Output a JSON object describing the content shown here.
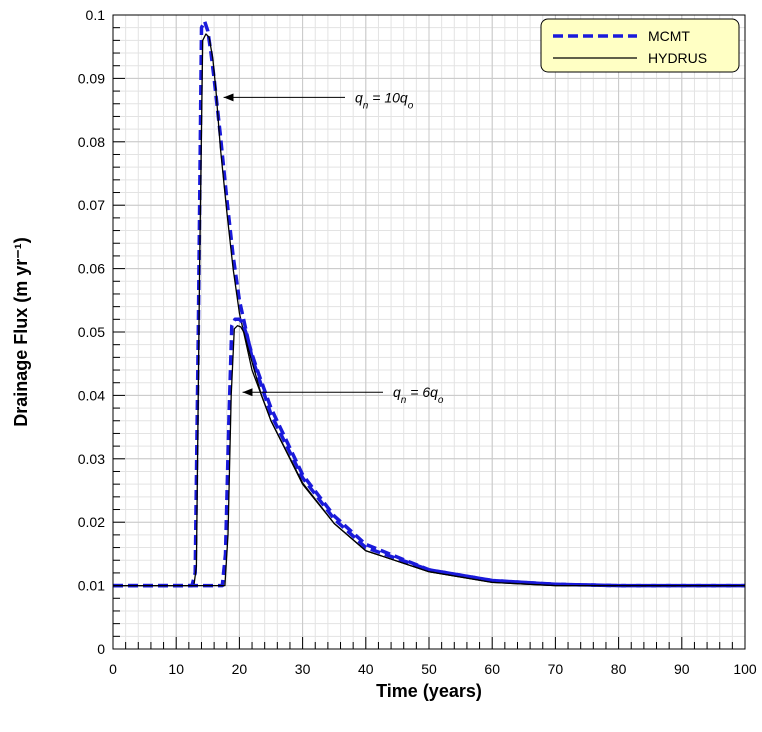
{
  "chart_data": {
    "type": "line",
    "title": "",
    "xlabel": "Time (years)",
    "ylabel": "Drainage Flux (m yr⁻¹)",
    "xlim": [
      0,
      100
    ],
    "ylim": [
      0,
      0.1
    ],
    "x_ticks": [
      "0",
      "10",
      "20",
      "30",
      "40",
      "50",
      "60",
      "70",
      "80",
      "90",
      "100"
    ],
    "y_ticks": [
      "0",
      "0.01",
      "0.02",
      "0.03",
      "0.04",
      "0.05",
      "0.06",
      "0.07",
      "0.08",
      "0.09",
      "0.1"
    ],
    "grid": true,
    "legend_position": "top-right",
    "legend": [
      {
        "label": "MCMT",
        "style": "dashed",
        "color": "#1a1adb"
      },
      {
        "label": "HYDRUS",
        "style": "solid",
        "color": "#000000"
      }
    ],
    "legend_fill": "#ffffc4",
    "annotations": [
      {
        "var": "q",
        "sub": "n",
        "rhs": " = 10q",
        "rhs_sub": "o",
        "target": [
          17.5,
          0.087
        ]
      },
      {
        "var": "q",
        "sub": "n",
        "rhs": " = 6q",
        "rhs_sub": "o",
        "target": [
          20.5,
          0.0405
        ]
      }
    ],
    "series": [
      {
        "name": "MCMT",
        "case": "qn = 10qo",
        "color": "#1a1adb",
        "x": [
          0,
          12.5,
          13,
          13.5,
          14,
          14.5,
          15,
          15.5,
          16,
          17,
          18,
          19,
          20,
          22,
          25,
          30,
          35,
          40,
          50,
          60,
          70,
          80,
          100
        ],
        "y": [
          0.01,
          0.01,
          0.012,
          0.05,
          0.098,
          0.099,
          0.0975,
          0.094,
          0.09,
          0.081,
          0.071,
          0.062,
          0.055,
          0.046,
          0.037,
          0.027,
          0.0205,
          0.016,
          0.0125,
          0.0108,
          0.0102,
          0.01,
          0.01
        ]
      },
      {
        "name": "HYDRUS",
        "case": "qn = 10qo",
        "color": "#000000",
        "x": [
          0,
          12.8,
          13.2,
          13.7,
          14.2,
          14.7,
          15.2,
          15.8,
          16.3,
          17,
          18,
          19,
          20,
          22,
          25,
          30,
          35,
          40,
          50,
          60,
          70,
          80,
          100
        ],
        "y": [
          0.01,
          0.01,
          0.013,
          0.06,
          0.096,
          0.097,
          0.0965,
          0.093,
          0.088,
          0.079,
          0.069,
          0.06,
          0.053,
          0.044,
          0.036,
          0.0262,
          0.0198,
          0.0155,
          0.0122,
          0.0105,
          0.01,
          0.01,
          0.01
        ]
      },
      {
        "name": "MCMT",
        "case": "qn = 6qo",
        "color": "#1a1adb",
        "x": [
          0,
          17.3,
          17.8,
          18.3,
          18.8,
          19.3,
          20,
          20.5,
          21,
          22,
          23,
          25,
          30,
          35,
          40,
          50,
          60,
          70,
          80,
          100
        ],
        "y": [
          0.01,
          0.01,
          0.015,
          0.035,
          0.051,
          0.052,
          0.052,
          0.0515,
          0.05,
          0.0465,
          0.0435,
          0.038,
          0.0275,
          0.021,
          0.0165,
          0.0125,
          0.0108,
          0.0102,
          0.01,
          0.01
        ]
      },
      {
        "name": "HYDRUS",
        "case": "qn = 6qo",
        "color": "#000000",
        "x": [
          0,
          17.7,
          18.2,
          18.7,
          19.2,
          19.7,
          20.2,
          20.7,
          21.5,
          22.5,
          23.5,
          25,
          30,
          35,
          40,
          50,
          60,
          70,
          80,
          100
        ],
        "y": [
          0.01,
          0.01,
          0.018,
          0.04,
          0.0505,
          0.051,
          0.0508,
          0.05,
          0.047,
          0.0435,
          0.04,
          0.036,
          0.026,
          0.0198,
          0.0155,
          0.0122,
          0.0105,
          0.01,
          0.01,
          0.01
        ]
      }
    ]
  }
}
